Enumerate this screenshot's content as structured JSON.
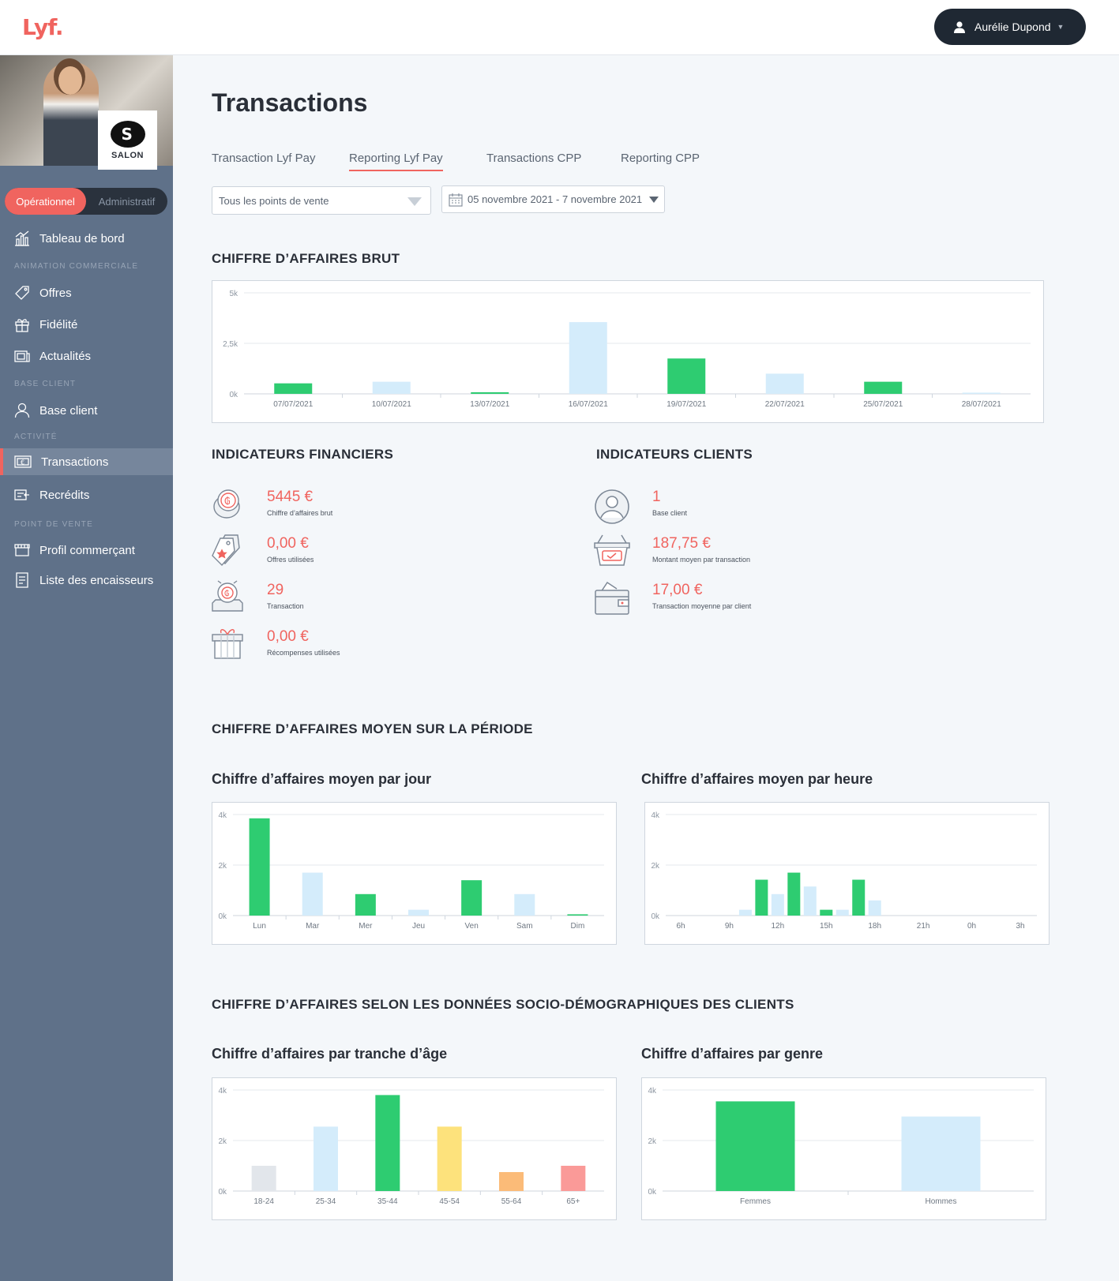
{
  "header": {
    "logo": "Lyf.",
    "user_name": "Aurélie Dupond"
  },
  "sidebar": {
    "brand_name": "SALON",
    "mode": {
      "active": "Opérationnel",
      "inactive": "Administratif"
    },
    "items": {
      "dashboard": "Tableau de bord",
      "offers": "Offres",
      "loyalty": "Fidélité",
      "news": "Actualités",
      "clients": "Base client",
      "transactions": "Transactions",
      "refunds": "Recrédits",
      "merchant": "Profil commerçant",
      "cashiers": "Liste des encaisseurs"
    },
    "sections": {
      "animation": "ANIMATION COMMERCIALE",
      "base": "BASE CLIENT",
      "activity": "ACTIVITÉ",
      "pos": "POINT DE VENTE"
    }
  },
  "page": {
    "title": "Transactions",
    "tabs": [
      "Transaction Lyf Pay",
      "Reporting Lyf Pay",
      "Transactions CPP",
      "Reporting CPP"
    ],
    "active_tab": "Reporting Lyf Pay",
    "filters": {
      "pos": "Tous les points de vente",
      "dates": "05 novembre 2021 - 7 novembre 2021"
    },
    "sections": {
      "gross": "CHIFFRE D’AFFAIRES BRUT",
      "fin": "INDICATEURS FINANCIERS",
      "cli": "INDICATEURS CLIENTS",
      "avg": "CHIFFRE D’AFFAIRES MOYEN SUR LA PÉRIODE",
      "socio": "CHIFFRE D’AFFAIRES SELON LES DONNÉES SOCIO-DÉMOGRAPHIQUES DES CLIENTS"
    },
    "subtitles": {
      "day": "Chiffre d’affaires moyen par jour",
      "hour": "Chiffre d’affaires moyen par heure",
      "age": "Chiffre d’affaires par tranche d’âge",
      "gender": "Chiffre d’affaires par genre"
    }
  },
  "kpi_financial": [
    {
      "value": "5445 €",
      "label": "Chiffre d’affaires brut",
      "icon": "coins-icon"
    },
    {
      "value": "0,00 €",
      "label": "Offres utilisées",
      "icon": "tags-icon"
    },
    {
      "value": "29",
      "label": "Transaction",
      "icon": "cash-register-icon"
    },
    {
      "value": "0,00 €",
      "label": "Récompenses utilisées",
      "icon": "gift-icon"
    }
  ],
  "kpi_clients": [
    {
      "value": "1",
      "label": "Base client",
      "icon": "user-circle-icon"
    },
    {
      "value": "187,75 €",
      "label": "Montant moyen par transaction",
      "icon": "basket-icon"
    },
    {
      "value": "17,00 €",
      "label": "Transaction moyenne par client",
      "icon": "wallet-icon"
    }
  ],
  "colors": {
    "accent": "#f0645f",
    "green": "#2ecc71",
    "light_blue": "#d4ecfb"
  },
  "chart_data": [
    {
      "id": "gross",
      "type": "bar",
      "y_ticks": [
        "5k",
        "2,5k",
        "0k"
      ],
      "ylim": [
        0,
        5000
      ],
      "categories": [
        "07/07/2021",
        "10/07/2021",
        "13/07/2021",
        "16/07/2021",
        "19/07/2021",
        "22/07/2021",
        "25/07/2021",
        "28/07/2021"
      ],
      "values": [
        520,
        600,
        80,
        3550,
        1750,
        1000,
        600,
        60
      ],
      "bar_colors": [
        "#2ecc71",
        "#d4ecfb",
        "#2ecc71",
        "#d4ecfb",
        "#2ecc71",
        "#d4ecfb",
        "#2ecc71",
        "#d4ecfb"
      ]
    },
    {
      "id": "day",
      "type": "bar",
      "y_ticks": [
        "4k",
        "2k",
        "0k"
      ],
      "ylim": [
        0,
        4000
      ],
      "categories": [
        "Lun",
        "Mar",
        "Mer",
        "Jeu",
        "Ven",
        "Sam",
        "Dim"
      ],
      "values": [
        3850,
        1700,
        850,
        230,
        1400,
        850,
        50
      ],
      "bar_colors": [
        "#2ecc71",
        "#d4ecfb",
        "#2ecc71",
        "#d4ecfb",
        "#2ecc71",
        "#d4ecfb",
        "#2ecc71"
      ]
    },
    {
      "id": "hour",
      "type": "bar",
      "y_ticks": [
        "4k",
        "2k",
        "0k"
      ],
      "ylim": [
        0,
        4000
      ],
      "tick_labels": [
        "6h",
        "9h",
        "12h",
        "15h",
        "18h",
        "21h",
        "0h",
        "3h"
      ],
      "hours": [
        10,
        11,
        12,
        13,
        14,
        15,
        16,
        17,
        18,
        19
      ],
      "values": [
        230,
        1420,
        850,
        1700,
        1150,
        230,
        230,
        1420,
        600,
        0
      ],
      "bar_colors": [
        "#d4ecfb",
        "#2ecc71",
        "#d4ecfb",
        "#2ecc71",
        "#d4ecfb",
        "#2ecc71",
        "#d4ecfb",
        "#2ecc71",
        "#d4ecfb",
        "#2ecc71"
      ]
    },
    {
      "id": "age",
      "type": "bar",
      "y_ticks": [
        "4k",
        "2k",
        "0k"
      ],
      "ylim": [
        0,
        4000
      ],
      "categories": [
        "18-24",
        "25-34",
        "35-44",
        "45-54",
        "55-64",
        "65+"
      ],
      "values": [
        1000,
        2550,
        3800,
        2550,
        750,
        1000
      ],
      "bar_colors": [
        "#e2e6eb",
        "#d4ecfb",
        "#2ecc71",
        "#fde27c",
        "#fbbb78",
        "#fa9a98"
      ]
    },
    {
      "id": "gender",
      "type": "bar",
      "y_ticks": [
        "4k",
        "2k",
        "0k"
      ],
      "ylim": [
        0,
        4000
      ],
      "categories": [
        "Femmes",
        "Hommes"
      ],
      "values": [
        3550,
        2950
      ],
      "bar_colors": [
        "#2ecc71",
        "#d4ecfb"
      ]
    }
  ]
}
